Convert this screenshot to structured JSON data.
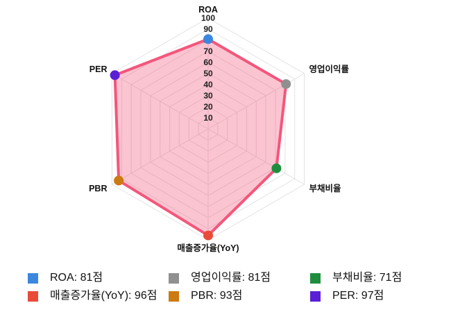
{
  "chart_data": {
    "type": "radar",
    "categories": [
      "ROA",
      "영업이익률",
      "부채비율",
      "매출증가율(YoY)",
      "PBR",
      "PER"
    ],
    "series": [
      {
        "values": [
          81,
          81,
          71,
          96,
          93,
          97
        ]
      }
    ],
    "ylim": [
      0,
      100
    ],
    "tick_step": 10,
    "tick_labels": [
      "10",
      "20",
      "30",
      "40",
      "50",
      "60",
      "70",
      "80",
      "90",
      "100"
    ],
    "grid": true,
    "legend_position": "bottom",
    "fill_color": "rgba(244, 86, 123, 0.35)",
    "stroke_color": "#f4567b",
    "grid_color": "#e2e2e2",
    "tick_color": "#222222",
    "label_color": "#111111",
    "point_colors": [
      "#3b87e0",
      "#909090",
      "#1e8e3e",
      "#e94b38",
      "#cc7a12",
      "#5a1fd4"
    ]
  },
  "legend": {
    "items": [
      {
        "label": "ROA: 81점",
        "color": "#3b87e0"
      },
      {
        "label": "영업이익률: 81점",
        "color": "#909090"
      },
      {
        "label": "부채비율: 71점",
        "color": "#1e8e3e"
      },
      {
        "label": "매출증가율(YoY): 96점",
        "color": "#e94b38"
      },
      {
        "label": "PBR: 93점",
        "color": "#cc7a12"
      },
      {
        "label": "PER: 97점",
        "color": "#5a1fd4"
      }
    ]
  }
}
